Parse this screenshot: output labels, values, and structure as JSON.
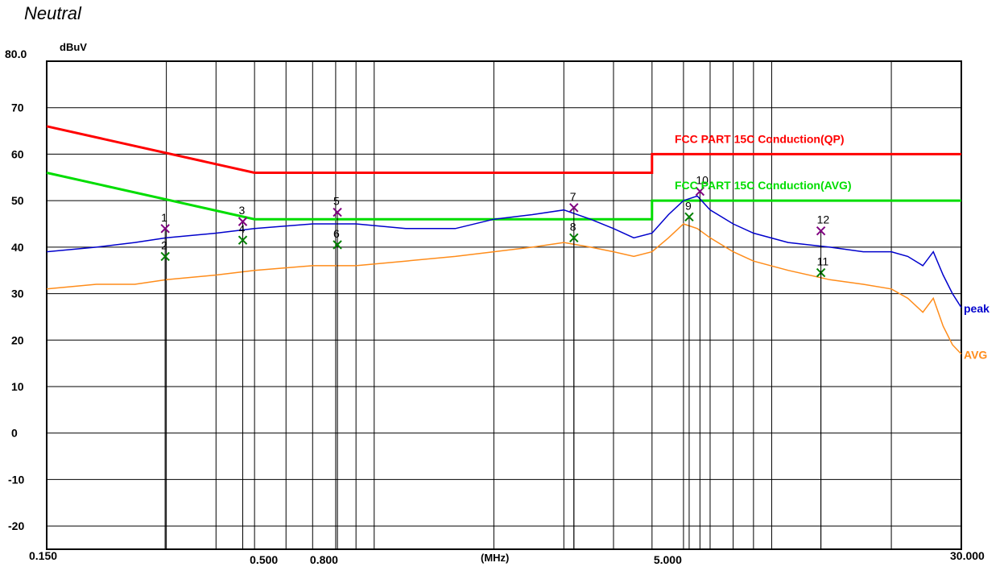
{
  "title": "Neutral",
  "chart_data": {
    "type": "line",
    "y_unit": "dBuV",
    "x_unit": "(MHz)",
    "x_scale": "log",
    "xlim": [
      0.15,
      30.0
    ],
    "ylim": [
      -25,
      80
    ],
    "y_ticks": [
      {
        "value": 80,
        "label": "80.0"
      },
      {
        "value": 70,
        "label": "70"
      },
      {
        "value": 60,
        "label": "60"
      },
      {
        "value": 50,
        "label": "50"
      },
      {
        "value": 40,
        "label": "40"
      },
      {
        "value": 30,
        "label": "30"
      },
      {
        "value": 20,
        "label": "20"
      },
      {
        "value": 10,
        "label": "10"
      },
      {
        "value": 0,
        "label": "0"
      },
      {
        "value": -10,
        "label": "-10"
      },
      {
        "value": -20,
        "label": "-20"
      }
    ],
    "x_ticks": [
      {
        "value": 0.15,
        "label": "0.150"
      },
      {
        "value": 0.5,
        "label": "0.500"
      },
      {
        "value": 0.8,
        "label": "0.800"
      },
      {
        "value": 5.0,
        "label": "5.000"
      },
      {
        "value": 30.0,
        "label": "30.000"
      }
    ],
    "x_gridlines": [
      0.15,
      0.3,
      0.4,
      0.5,
      0.6,
      0.7,
      0.8,
      0.9,
      1,
      2,
      3,
      4,
      5,
      6,
      7,
      8,
      9,
      10,
      20,
      30
    ],
    "limit_lines": [
      {
        "name": "FCC PART 15C  Conduction(QP)",
        "color": "#ff0000",
        "points": [
          [
            0.15,
            66
          ],
          [
            0.5,
            56
          ],
          [
            5.0,
            56
          ],
          [
            5.0,
            60
          ],
          [
            30.0,
            60
          ]
        ]
      },
      {
        "name": "FCC PART 15C Conduction(AVG)",
        "color": "#00dd00",
        "points": [
          [
            0.15,
            56
          ],
          [
            0.5,
            46
          ],
          [
            5.0,
            46
          ],
          [
            5.0,
            50
          ],
          [
            30.0,
            50
          ]
        ]
      }
    ],
    "series": [
      {
        "name": "peak",
        "color": "#0000cc",
        "points": [
          [
            0.15,
            39
          ],
          [
            0.2,
            40
          ],
          [
            0.25,
            41
          ],
          [
            0.3,
            42
          ],
          [
            0.4,
            43
          ],
          [
            0.5,
            44
          ],
          [
            0.7,
            45
          ],
          [
            0.9,
            45
          ],
          [
            1.2,
            44
          ],
          [
            1.6,
            44
          ],
          [
            2.0,
            46
          ],
          [
            2.5,
            47
          ],
          [
            3.0,
            48
          ],
          [
            3.5,
            46
          ],
          [
            4.0,
            44
          ],
          [
            4.5,
            42
          ],
          [
            5.0,
            43
          ],
          [
            5.5,
            47
          ],
          [
            6.0,
            50
          ],
          [
            6.5,
            51
          ],
          [
            7.0,
            48
          ],
          [
            8.0,
            45
          ],
          [
            9.0,
            43
          ],
          [
            11.0,
            41
          ],
          [
            14.0,
            40
          ],
          [
            17.0,
            39
          ],
          [
            20.0,
            39
          ],
          [
            22.0,
            38
          ],
          [
            24.0,
            36
          ],
          [
            25.5,
            39
          ],
          [
            27.0,
            34
          ],
          [
            28.5,
            30
          ],
          [
            30.0,
            27
          ]
        ]
      },
      {
        "name": "AVG",
        "color": "#ff8c1a",
        "points": [
          [
            0.15,
            31
          ],
          [
            0.2,
            32
          ],
          [
            0.25,
            32
          ],
          [
            0.3,
            33
          ],
          [
            0.4,
            34
          ],
          [
            0.5,
            35
          ],
          [
            0.7,
            36
          ],
          [
            0.9,
            36
          ],
          [
            1.2,
            37
          ],
          [
            1.6,
            38
          ],
          [
            2.0,
            39
          ],
          [
            2.5,
            40
          ],
          [
            3.0,
            41
          ],
          [
            3.5,
            40
          ],
          [
            4.0,
            39
          ],
          [
            4.5,
            38
          ],
          [
            5.0,
            39
          ],
          [
            5.5,
            42
          ],
          [
            6.0,
            45
          ],
          [
            6.5,
            44
          ],
          [
            7.0,
            42
          ],
          [
            8.0,
            39
          ],
          [
            9.0,
            37
          ],
          [
            11.0,
            35
          ],
          [
            14.0,
            33
          ],
          [
            17.0,
            32
          ],
          [
            20.0,
            31
          ],
          [
            22.0,
            29
          ],
          [
            24.0,
            26
          ],
          [
            25.5,
            29
          ],
          [
            27.0,
            23
          ],
          [
            28.5,
            19
          ],
          [
            30.0,
            17
          ]
        ]
      }
    ],
    "markers": [
      {
        "label": "1",
        "freq": 0.298,
        "level": 44.0,
        "kind": "peak"
      },
      {
        "label": "2",
        "freq": 0.298,
        "level": 38.0,
        "kind": "avg"
      },
      {
        "label": "3",
        "freq": 0.467,
        "level": 45.5,
        "kind": "peak"
      },
      {
        "label": "4",
        "freq": 0.467,
        "level": 41.5,
        "kind": "avg"
      },
      {
        "label": "5",
        "freq": 0.808,
        "level": 47.5,
        "kind": "peak"
      },
      {
        "label": "6",
        "freq": 0.808,
        "level": 40.5,
        "kind": "avg"
      },
      {
        "label": "7",
        "freq": 3.18,
        "level": 48.5,
        "kind": "peak"
      },
      {
        "label": "8",
        "freq": 3.18,
        "level": 42.0,
        "kind": "avg"
      },
      {
        "label": "9",
        "freq": 6.2,
        "level": 46.5,
        "kind": "avg"
      },
      {
        "label": "10",
        "freq": 6.6,
        "level": 52.0,
        "kind": "peak"
      },
      {
        "label": "11",
        "freq": 13.3,
        "level": 34.5,
        "kind": "avg"
      },
      {
        "label": "12",
        "freq": 13.3,
        "level": 43.5,
        "kind": "peak"
      }
    ],
    "grid": true,
    "colors": {
      "frame": "#000000",
      "grid": "#000000",
      "peak_marker": "#800080",
      "avg_marker": "#008000"
    }
  }
}
